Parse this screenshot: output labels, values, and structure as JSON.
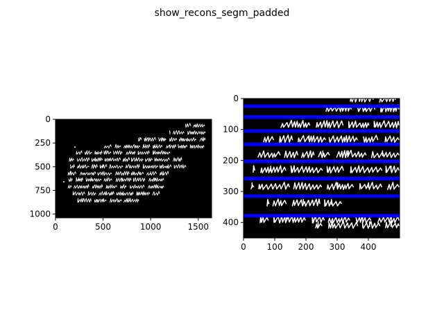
{
  "figure": {
    "title": "show_recons_segm_padded"
  },
  "chart_data": [
    {
      "type": "image",
      "panel": "left",
      "xlim": [
        0,
        1640
      ],
      "ylim": [
        1040,
        0
      ],
      "xticks": [
        0,
        500,
        1000,
        1500
      ],
      "yticks": [
        0,
        250,
        500,
        750,
        1000
      ],
      "background": "#000000",
      "ink": "#ffffff"
    },
    {
      "type": "image",
      "panel": "right",
      "xlim": [
        0,
        500
      ],
      "ylim": [
        450,
        0
      ],
      "xticks": [
        0,
        100,
        200,
        300,
        400
      ],
      "yticks": [
        0,
        100,
        200,
        300,
        400
      ],
      "background": "#000000",
      "ink": "#ffffff",
      "segmentation_line_color": "#0000ff",
      "segmentation_lines_y": [
        25,
        60,
        105,
        148,
        203,
        258,
        315,
        378
      ]
    }
  ]
}
